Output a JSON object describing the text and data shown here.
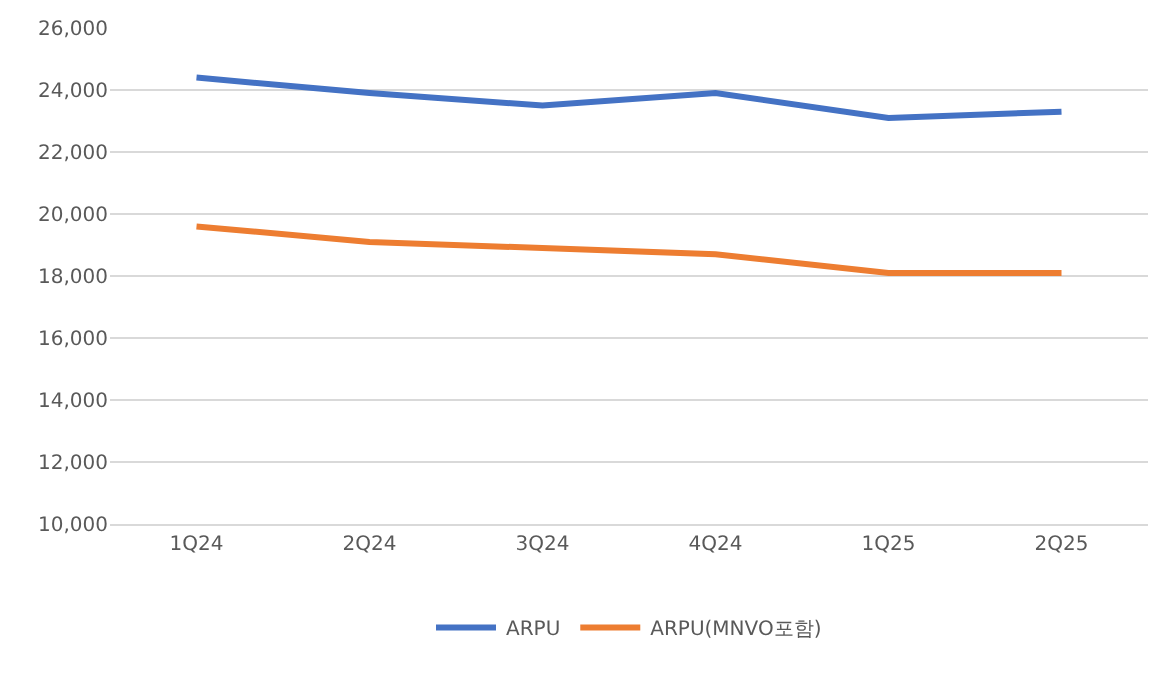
{
  "chart_data": {
    "type": "line",
    "categories": [
      "1Q24",
      "2Q24",
      "3Q24",
      "4Q24",
      "1Q25",
      "2Q25"
    ],
    "series": [
      {
        "name": "ARPU",
        "color": "#4472c4",
        "values": [
          24400,
          23900,
          23500,
          23900,
          23100,
          23300
        ]
      },
      {
        "name": "ARPU(MNVO포함)",
        "color": "#ed7d31",
        "values": [
          19600,
          19100,
          18900,
          18700,
          18100,
          18100
        ]
      }
    ],
    "ylim": [
      10000,
      26000
    ],
    "yticks": [
      {
        "value": 10000,
        "label": "10,000"
      },
      {
        "value": 12000,
        "label": "12,000"
      },
      {
        "value": 14000,
        "label": "14,000"
      },
      {
        "value": 16000,
        "label": "16,000"
      },
      {
        "value": 18000,
        "label": "18,000"
      },
      {
        "value": 20000,
        "label": "20,000"
      },
      {
        "value": 22000,
        "label": "22,000"
      },
      {
        "value": 24000,
        "label": "24,000"
      },
      {
        "value": 26000,
        "label": "26,000"
      }
    ],
    "grid": "y",
    "legend": "bottom",
    "marker": "none",
    "line_style": "solid"
  }
}
